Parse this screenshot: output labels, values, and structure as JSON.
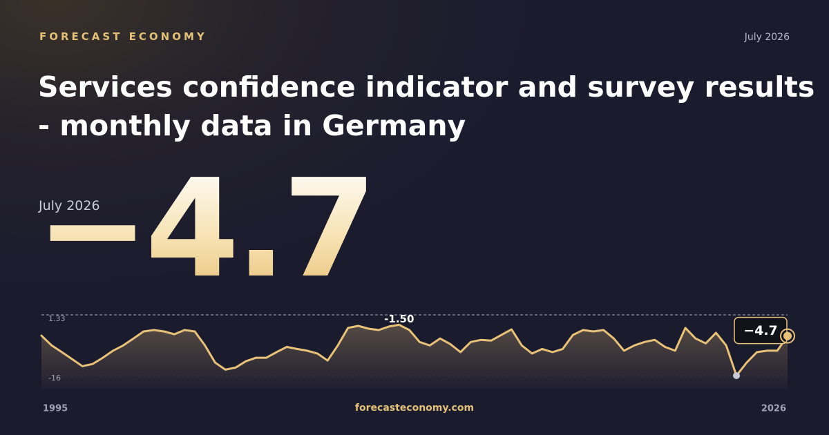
{
  "header": {
    "brand": "FORECAST ECONOMY",
    "date": "July 2026"
  },
  "footer": {
    "site": "forecasteconomy.com"
  },
  "chart_data": {
    "type": "line",
    "title": "Services confidence indicator and survey results - monthly data in Germany",
    "categories": [
      "1995",
      null,
      null,
      null,
      null,
      null,
      null,
      null,
      null,
      null,
      null,
      null,
      null,
      null,
      null,
      null,
      null,
      null,
      null,
      null,
      null,
      null,
      null,
      null,
      null,
      null,
      null,
      null,
      null,
      null,
      null,
      null,
      null,
      null,
      null,
      null,
      null,
      null,
      null,
      null,
      null,
      null,
      null,
      null,
      null,
      null,
      null,
      null,
      null,
      null,
      null,
      null,
      null,
      null,
      null,
      null,
      null,
      null,
      null,
      null,
      null,
      null,
      null,
      null,
      null,
      null,
      null,
      null,
      null,
      null,
      null,
      null,
      null,
      "2026"
    ],
    "values": [
      -4.6,
      -7.4,
      -9.3,
      -11.3,
      -13.3,
      -12.7,
      -10.9,
      -8.9,
      -7.4,
      -5.4,
      -3.4,
      -3.0,
      -3.4,
      -4.2,
      -3.0,
      -3.4,
      -7.4,
      -12.3,
      -14.3,
      -13.7,
      -11.9,
      -10.9,
      -10.9,
      -9.3,
      -7.8,
      -8.4,
      -8.9,
      -9.7,
      -11.7,
      -7.4,
      -2.4,
      -1.8,
      -2.6,
      -3.0,
      -2.0,
      -1.5,
      -3.0,
      -6.4,
      -7.4,
      -5.4,
      -7.0,
      -9.3,
      -6.4,
      -5.8,
      -6.0,
      -4.4,
      -2.8,
      -7.4,
      -9.7,
      -8.4,
      -9.3,
      -8.4,
      -4.4,
      -3.0,
      -3.4,
      -3.0,
      -5.4,
      -8.9,
      -7.4,
      -6.4,
      -5.8,
      -7.8,
      -8.9,
      -2.4,
      -5.4,
      -6.8,
      -3.8,
      -7.4,
      -16,
      -12.3,
      -9.3,
      -8.9,
      -8.9,
      -4.7
    ],
    "value_labels": [
      null,
      null,
      null,
      null,
      null,
      null,
      null,
      null,
      null,
      null,
      null,
      null,
      null,
      null,
      null,
      null,
      null,
      null,
      null,
      null,
      null,
      null,
      null,
      null,
      null,
      null,
      null,
      null,
      null,
      null,
      null,
      null,
      null,
      null,
      null,
      "-1.50",
      null,
      null,
      null,
      null,
      null,
      null,
      null,
      null,
      null,
      null,
      null,
      null,
      null,
      null,
      null,
      null,
      null,
      null,
      null,
      null,
      null,
      null,
      null,
      null,
      null,
      null,
      null,
      null,
      null,
      null,
      null,
      null,
      null,
      null,
      null,
      null,
      null,
      "−4.7"
    ],
    "color": "#e9c27a",
    "min_color": "#c9cad8",
    "ylim": [
      -16,
      1.33
    ],
    "yticks": [
      1.33,
      -16
    ],
    "grid": true
  }
}
